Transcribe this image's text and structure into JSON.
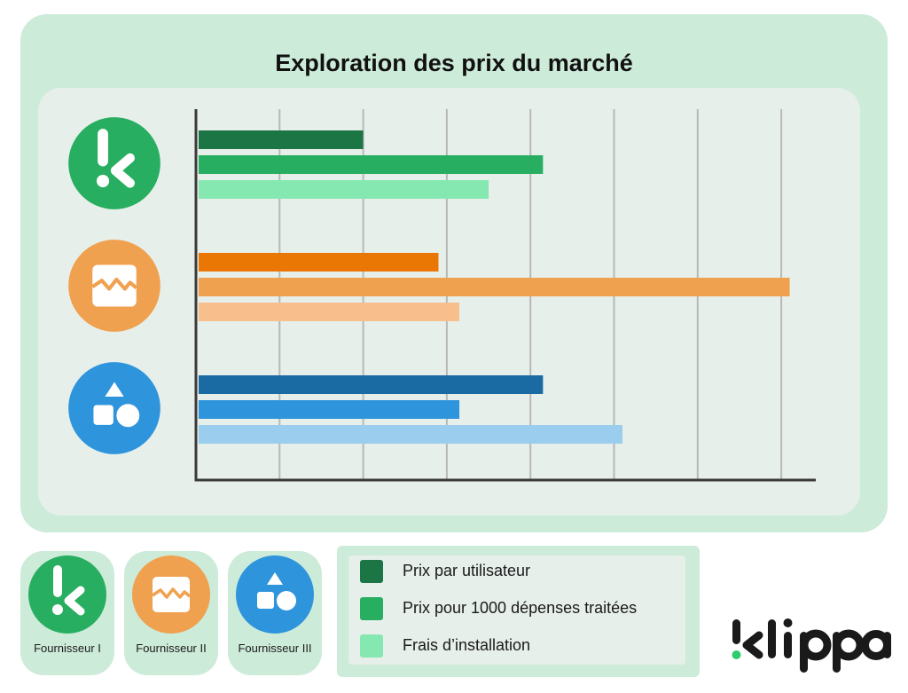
{
  "title": "Exploration des prix du marché",
  "chart_data": {
    "type": "bar",
    "orientation": "horizontal",
    "categories": [
      "Fournisseur I",
      "Fournisseur II",
      "Fournisseur III"
    ],
    "series": [
      {
        "name": "Prix par utilisateur",
        "values": [
          2.0,
          2.9,
          4.15
        ]
      },
      {
        "name": "Prix pour 1000 dépenses traitées",
        "values": [
          4.15,
          7.1,
          3.15
        ]
      },
      {
        "name": "Frais d’installation",
        "values": [
          3.5,
          3.15,
          5.1
        ]
      }
    ],
    "xlim": [
      0,
      7.4
    ],
    "x_gridlines": [
      1,
      2,
      3,
      4,
      5,
      6,
      7
    ],
    "grid": true,
    "tick_labels_shown": false,
    "colors": {
      "Fournisseur I": [
        "#1c7544",
        "#27ae60",
        "#86e8b1"
      ],
      "Fournisseur II": [
        "#ea7604",
        "#f0a14f",
        "#f8bf8c"
      ],
      "Fournisseur III": [
        "#1a6aa3",
        "#2e94dc",
        "#9acdee"
      ]
    }
  },
  "suppliers": [
    {
      "label": "Fournisseur I",
      "icon": "klippa-k-icon",
      "color": "#27ae60"
    },
    {
      "label": "Fournisseur II",
      "icon": "wave-box-icon",
      "color": "#f0a14f"
    },
    {
      "label": "Fournisseur III",
      "icon": "shapes-icon",
      "color": "#2e94dc"
    }
  ],
  "legend": [
    {
      "label": "Prix par utilisateur",
      "color": "#1c7544"
    },
    {
      "label": "Prix pour 1000 dépenses traitées",
      "color": "#27ae60"
    },
    {
      "label": "Frais d’installation",
      "color": "#86e8b1"
    }
  ],
  "brand": {
    "name": "klippa",
    "accent": "#2ecc71"
  },
  "theme": {
    "card_bg": "#cdebd9",
    "panel_bg": "#e6efea",
    "axis": "#3a3a3a",
    "grid": "#b8b8b8"
  }
}
